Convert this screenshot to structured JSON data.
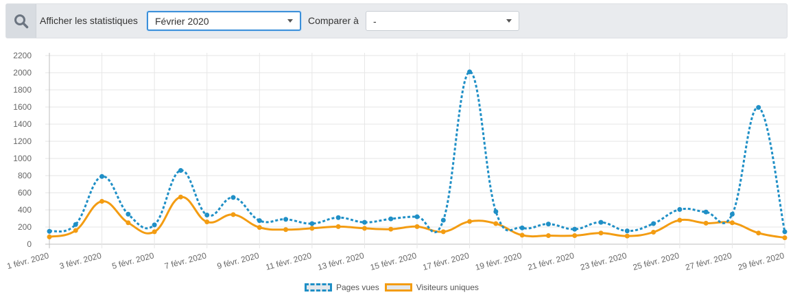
{
  "filter": {
    "show_label": "Afficher les statistiques",
    "period_value": "Février 2020",
    "compare_label": "Comparer à",
    "compare_value": "-"
  },
  "colors": {
    "pages": "#1f8fc6",
    "visitors": "#f39c12",
    "grid": "#e6e6e6"
  },
  "chart_data": {
    "type": "line",
    "ylim": [
      0,
      2200
    ],
    "yticks": [
      0,
      200,
      400,
      600,
      800,
      1000,
      1200,
      1400,
      1600,
      1800,
      2000,
      2200
    ],
    "x_tick_labels": [
      "1 févr. 2020",
      "3 févr. 2020",
      "5 févr. 2020",
      "7 févr. 2020",
      "9 févr. 2020",
      "11 févr. 2020",
      "13 févr. 2020",
      "15 févr. 2020",
      "17 févr. 2020",
      "19 févr. 2020",
      "21 févr. 2020",
      "23 févr. 2020",
      "25 févr. 2020",
      "27 févr. 2020",
      "29 févr. 2020"
    ],
    "x": [
      1,
      2,
      3,
      4,
      5,
      6,
      7,
      8,
      9,
      10,
      11,
      12,
      13,
      14,
      15,
      16,
      17,
      18,
      19,
      20,
      21,
      22,
      23,
      24,
      25,
      26,
      27,
      28,
      29
    ],
    "series": [
      {
        "name": "Pages vues",
        "style": "dashed",
        "values": [
          150,
          230,
          790,
          350,
          225,
          860,
          340,
          545,
          275,
          290,
          240,
          310,
          255,
          295,
          320,
          280,
          2010,
          380,
          190,
          235,
          175,
          255,
          155,
          240,
          405,
          375,
          350,
          1595,
          145
        ]
      },
      {
        "name": "Visiteurs uniques",
        "style": "solid",
        "values": [
          85,
          160,
          500,
          250,
          145,
          550,
          260,
          345,
          195,
          170,
          185,
          205,
          185,
          175,
          205,
          145,
          265,
          240,
          105,
          100,
          100,
          130,
          95,
          140,
          280,
          245,
          250,
          130,
          75
        ]
      }
    ]
  }
}
